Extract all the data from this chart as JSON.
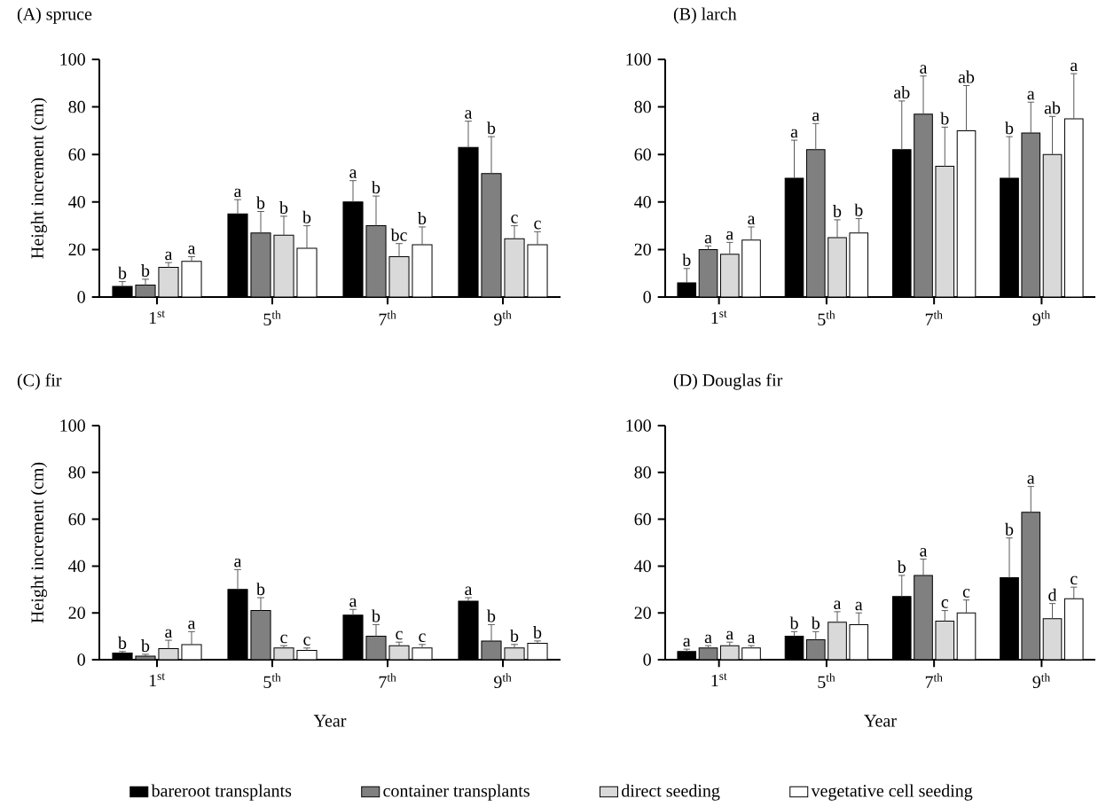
{
  "chart_data": [
    {
      "type": "bar",
      "title": "(A) spruce",
      "ylabel": "Height increment (cm)",
      "categories": [
        "1$^{st}$",
        "5$^{th}$",
        "7$^{th}$",
        "9$^{th}$"
      ],
      "ylim": [
        0,
        100
      ],
      "yticks": [
        0,
        20,
        40,
        60,
        80,
        100
      ],
      "legend": "bottom",
      "series": [
        {
          "name": "bareroot transplants",
          "color": "#000000",
          "values": [
            4.5,
            35,
            40,
            63
          ],
          "errors": [
            2,
            6,
            9,
            11
          ],
          "value_labels": [
            "b",
            "a",
            "a",
            "a"
          ]
        },
        {
          "name": "container transplants",
          "color": "#808080",
          "values": [
            5,
            27,
            30,
            52
          ],
          "errors": [
            2.5,
            9,
            12.5,
            15.5
          ],
          "value_labels": [
            "b",
            "b",
            "b",
            "b"
          ]
        },
        {
          "name": "direct seeding",
          "color": "#d9d9d9",
          "values": [
            12.5,
            26,
            17,
            24.5
          ],
          "errors": [
            2,
            8,
            5.5,
            5.5
          ],
          "value_labels": [
            "a",
            "b",
            "bc",
            "c"
          ]
        },
        {
          "name": "vegetative cell seeding",
          "color": "#ffffff",
          "values": [
            15,
            20.5,
            22,
            22
          ],
          "errors": [
            2,
            9.5,
            7.5,
            5.5
          ],
          "value_labels": [
            "a",
            "b",
            "b",
            "c"
          ]
        }
      ]
    },
    {
      "type": "bar",
      "title": "(B) larch",
      "categories": [
        "1$^{st}$",
        "5$^{th}$",
        "7$^{th}$",
        "9$^{th}$"
      ],
      "ylim": [
        0,
        100
      ],
      "yticks": [
        0,
        20,
        40,
        60,
        80,
        100
      ],
      "series": [
        {
          "color": "#000000",
          "values": [
            6,
            50,
            62,
            50
          ],
          "errors": [
            6,
            16,
            20.5,
            17.5
          ],
          "value_labels": [
            "b",
            "a",
            "ab",
            "b"
          ]
        },
        {
          "color": "#808080",
          "values": [
            20,
            62,
            77,
            69
          ],
          "errors": [
            1.5,
            11,
            16,
            13
          ],
          "value_labels": [
            "a",
            "a",
            "a",
            "a"
          ]
        },
        {
          "color": "#d9d9d9",
          "values": [
            18,
            25,
            55,
            60
          ],
          "errors": [
            5,
            7.5,
            16.5,
            16
          ],
          "value_labels": [
            "a",
            "b",
            "b",
            "ab"
          ]
        },
        {
          "color": "#ffffff",
          "values": [
            24,
            27,
            70,
            75
          ],
          "errors": [
            5.5,
            6,
            19,
            19
          ],
          "value_labels": [
            "a",
            "b",
            "ab",
            "a"
          ]
        }
      ]
    },
    {
      "type": "bar",
      "title": "(C) fir",
      "ylabel": "Height increment (cm)",
      "xlabel": "Year",
      "categories": [
        "1$^{st}$",
        "5$^{th}$",
        "7$^{th}$",
        "9$^{th}$"
      ],
      "ylim": [
        0,
        100
      ],
      "yticks": [
        0,
        20,
        40,
        60,
        80,
        100
      ],
      "series": [
        {
          "color": "#000000",
          "values": [
            2.8,
            30,
            19,
            25
          ],
          "errors": [
            0.7,
            8.5,
            2.5,
            1.5
          ],
          "value_labels": [
            "b",
            "a",
            "a",
            "a"
          ]
        },
        {
          "color": "#808080",
          "values": [
            1.5,
            21,
            10,
            8
          ],
          "errors": [
            0.8,
            5.5,
            5,
            7
          ],
          "value_labels": [
            "b",
            "b",
            "b",
            "b"
          ]
        },
        {
          "color": "#d9d9d9",
          "values": [
            4.7,
            5,
            6,
            5
          ],
          "errors": [
            3.6,
            1,
            1.5,
            1.5
          ],
          "value_labels": [
            "a",
            "c",
            "c",
            "b"
          ]
        },
        {
          "color": "#ffffff",
          "values": [
            6.4,
            4,
            5,
            7
          ],
          "errors": [
            5.6,
            1,
            1.5,
            1
          ],
          "value_labels": [
            "a",
            "c",
            "c",
            "b"
          ]
        }
      ]
    },
    {
      "type": "bar",
      "title": "(D) Douglas fir",
      "xlabel": "Year",
      "categories": [
        "1$^{st}$",
        "5$^{th}$",
        "7$^{th}$",
        "9$^{th}$"
      ],
      "ylim": [
        0,
        100
      ],
      "yticks": [
        0,
        20,
        40,
        60,
        80,
        100
      ],
      "series": [
        {
          "color": "#000000",
          "values": [
            3.5,
            10,
            27,
            35
          ],
          "errors": [
            1,
            2,
            9,
            17
          ],
          "value_labels": [
            "a",
            "b",
            "b",
            "b"
          ]
        },
        {
          "color": "#808080",
          "values": [
            5,
            8.5,
            36,
            63
          ],
          "errors": [
            1,
            3.5,
            7,
            11
          ],
          "value_labels": [
            "a",
            "b",
            "a",
            "a"
          ]
        },
        {
          "color": "#d9d9d9",
          "values": [
            6,
            16,
            16.5,
            17.5
          ],
          "errors": [
            1.5,
            4.5,
            4.5,
            6.5
          ],
          "value_labels": [
            "a",
            "a",
            "c",
            "d"
          ]
        },
        {
          "color": "#ffffff",
          "values": [
            5,
            15,
            20,
            26
          ],
          "errors": [
            1,
            5,
            5.5,
            5
          ],
          "value_labels": [
            "a",
            "a",
            "c",
            "c"
          ]
        }
      ]
    }
  ]
}
